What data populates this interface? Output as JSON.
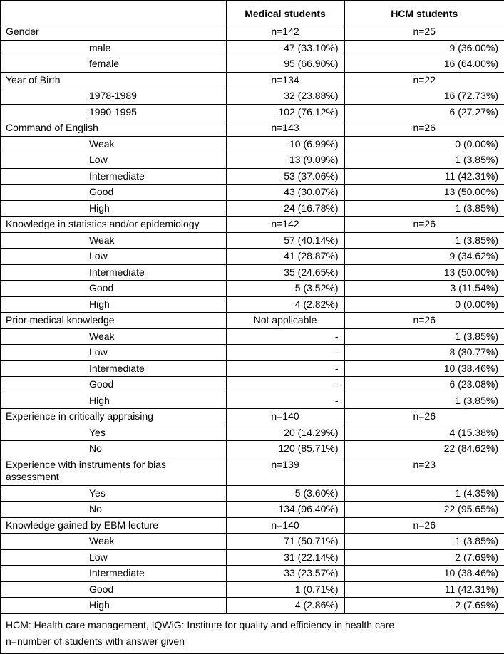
{
  "table": {
    "header": {
      "col_label": "",
      "col_medical": "Medical students",
      "col_hcm": "HCM students"
    },
    "rows": [
      {
        "type": "group",
        "label": "Gender",
        "medical": "n=142",
        "hcm": "n=25"
      },
      {
        "type": "sub",
        "label": "male",
        "medical": "47 (33.10%)",
        "hcm": "9 (36.00%)"
      },
      {
        "type": "sub",
        "label": "female",
        "medical": "95 (66.90%)",
        "hcm": "16 (64.00%)"
      },
      {
        "type": "group",
        "label": "Year of Birth",
        "medical": "n=134",
        "hcm": "n=22"
      },
      {
        "type": "sub",
        "label": "1978-1989",
        "medical": "32 (23.88%)",
        "hcm": "16 (72.73%)"
      },
      {
        "type": "sub",
        "label": "1990-1995",
        "medical": "102 (76.12%)",
        "hcm": "6 (27.27%)"
      },
      {
        "type": "group",
        "label": "Command of English",
        "medical": "n=143",
        "hcm": "n=26"
      },
      {
        "type": "sub",
        "label": "Weak",
        "medical": "10 (6.99%)",
        "hcm": "0 (0.00%)"
      },
      {
        "type": "sub",
        "label": "Low",
        "medical": "13 (9.09%)",
        "hcm": "1 (3.85%)"
      },
      {
        "type": "sub",
        "label": "Intermediate",
        "medical": "53 (37.06%)",
        "hcm": "11 (42.31%)"
      },
      {
        "type": "sub",
        "label": "Good",
        "medical": "43 (30.07%)",
        "hcm": "13 (50.00%)"
      },
      {
        "type": "sub",
        "label": "High",
        "medical": "24 (16.78%)",
        "hcm": "1 (3.85%)"
      },
      {
        "type": "group",
        "label": "Knowledge in statistics and/or epidemiology",
        "medical": "n=142",
        "hcm": "n=26"
      },
      {
        "type": "sub",
        "label": "Weak",
        "medical": "57 (40.14%)",
        "hcm": "1 (3.85%)"
      },
      {
        "type": "sub",
        "label": "Low",
        "medical": "41 (28.87%)",
        "hcm": "9 (34.62%)"
      },
      {
        "type": "sub",
        "label": "Intermediate",
        "medical": "35 (24.65%)",
        "hcm": "13 (50.00%)"
      },
      {
        "type": "sub",
        "label": "Good",
        "medical": "5 (3.52%)",
        "hcm": "3 (11.54%)"
      },
      {
        "type": "sub",
        "label": "High",
        "medical": "4 (2.82%)",
        "hcm": "0 (0.00%)"
      },
      {
        "type": "group",
        "label": "Prior medical knowledge",
        "medical": "Not applicable",
        "hcm": "n=26"
      },
      {
        "type": "sub",
        "label": "Weak",
        "medical": "-",
        "hcm": "1 (3.85%)"
      },
      {
        "type": "sub",
        "label": "Low",
        "medical": "-",
        "hcm": "8 (30.77%)"
      },
      {
        "type": "sub",
        "label": "Intermediate",
        "medical": "-",
        "hcm": "10 (38.46%)"
      },
      {
        "type": "sub",
        "label": "Good",
        "medical": "-",
        "hcm": "6 (23.08%)"
      },
      {
        "type": "sub",
        "label": "High",
        "medical": "-",
        "hcm": "1 (3.85%)"
      },
      {
        "type": "group",
        "label": "Experience in critically appraising",
        "medical": "n=140",
        "hcm": "n=26"
      },
      {
        "type": "sub",
        "label": "Yes",
        "medical": "20 (14.29%)",
        "hcm": "4 (15.38%)"
      },
      {
        "type": "sub",
        "label": "No",
        "medical": "120 (85.71%)",
        "hcm": "22 (84.62%)"
      },
      {
        "type": "group",
        "label": "Experience with instruments for bias assessment",
        "medical": "n=139",
        "hcm": "n=23"
      },
      {
        "type": "sub",
        "label": "Yes",
        "medical": "5 (3.60%)",
        "hcm": "1 (4.35%)"
      },
      {
        "type": "sub",
        "label": "No",
        "medical": "134 (96.40%)",
        "hcm": "22 (95.65%)"
      },
      {
        "type": "group",
        "label": "Knowledge gained by EBM lecture",
        "medical": "n=140",
        "hcm": "n=26"
      },
      {
        "type": "sub",
        "label": "Weak",
        "medical": "71 (50.71%)",
        "hcm": "1 (3.85%)"
      },
      {
        "type": "sub",
        "label": "Low",
        "medical": "31 (22.14%)",
        "hcm": "2 (7.69%)"
      },
      {
        "type": "sub",
        "label": "Intermediate",
        "medical": "33 (23.57%)",
        "hcm": "10 (38.46%)"
      },
      {
        "type": "sub",
        "label": "Good",
        "medical": "1 (0.71%)",
        "hcm": "11 (42.31%)"
      },
      {
        "type": "sub",
        "label": "High",
        "medical": "4 (2.86%)",
        "hcm": "2 (7.69%)"
      }
    ],
    "footnotes": [
      "HCM: Health care management, IQWiG: Institute for quality and efficiency in health care",
      "n=number of students with answer given"
    ]
  },
  "colors": {
    "border": "#000000",
    "text": "#000000",
    "background": "#ffffff"
  }
}
